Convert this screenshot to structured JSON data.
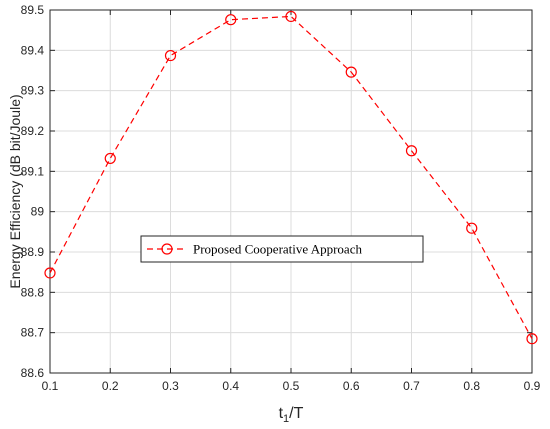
{
  "chart_data": {
    "type": "line",
    "title": "",
    "xlabel": {
      "main": "t",
      "subscript": "1",
      "suffix": "/T"
    },
    "ylabel": "Energy Efficiency (dB bit/Joule)",
    "xlim": [
      0.1,
      0.9
    ],
    "ylim": [
      88.6,
      89.5
    ],
    "xticks": [
      0.1,
      0.2,
      0.3,
      0.4,
      0.5,
      0.6,
      0.7,
      0.8,
      0.9
    ],
    "xtick_labels": [
      "0.1",
      "0.2",
      "0.3",
      "0.4",
      "0.5",
      "0.6",
      "0.7",
      "0.8",
      "0.9"
    ],
    "yticks": [
      88.6,
      88.7,
      88.8,
      88.9,
      89.0,
      89.1,
      89.2,
      89.3,
      89.4,
      89.5
    ],
    "ytick_labels": [
      "88.6",
      "88.7",
      "88.8",
      "88.9",
      "89",
      "89.1",
      "89.2",
      "89.3",
      "89.4",
      "89.5"
    ],
    "grid": true,
    "legend_placement": "center-left",
    "series": [
      {
        "name": "Proposed Cooperative Approach",
        "color": "#ff0000",
        "line_style": "dashed",
        "marker": "circle",
        "x": [
          0.1,
          0.2,
          0.3,
          0.4,
          0.5,
          0.6,
          0.7,
          0.8,
          0.9
        ],
        "y": [
          88.848,
          89.132,
          89.387,
          89.476,
          89.484,
          89.346,
          89.151,
          88.959,
          88.685
        ]
      }
    ]
  }
}
